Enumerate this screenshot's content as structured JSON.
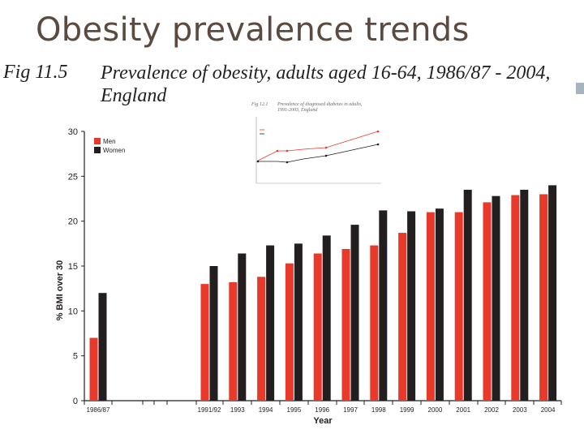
{
  "slide": {
    "title": "Obesity prevalence trends"
  },
  "figure": {
    "label": "Fig 11.5",
    "caption_line1": "Prevalence of obesity, adults aged 16-64, 1986/87 - 2004,",
    "caption_line2": "England"
  },
  "inset": {
    "label": "Fig 12.1",
    "title_line1": "Prevalence of diagnosed diabetes in adults,",
    "title_line2": "1991-2003, England"
  },
  "colors": {
    "men": "#e8392b",
    "women": "#231f20",
    "title": "#5b4a3f",
    "inset_red": "#e8392b",
    "inset_dark": "#231f20"
  },
  "chart_data": {
    "type": "bar",
    "title": "Prevalence of obesity, adults aged 16-64, 1986/87 - 2004, England",
    "xlabel": "Year",
    "ylabel": "% BMI over 30",
    "ylim": [
      0,
      30
    ],
    "yticks": [
      0,
      5,
      10,
      15,
      20,
      25,
      30
    ],
    "legend": "top-left",
    "categories": [
      "1986/87",
      "1991/92",
      "1993",
      "1994",
      "1995",
      "1996",
      "1997",
      "1998",
      "1999",
      "2000",
      "2001",
      "2002",
      "2003",
      "2004"
    ],
    "series": [
      {
        "name": "Men",
        "values": [
          7.0,
          13.0,
          13.2,
          13.8,
          15.3,
          16.4,
          16.9,
          17.3,
          18.7,
          21.0,
          21.0,
          22.1,
          22.9,
          23.0
        ]
      },
      {
        "name": "Women",
        "values": [
          12.0,
          15.0,
          16.4,
          17.3,
          17.5,
          18.4,
          19.6,
          21.2,
          21.1,
          21.4,
          23.5,
          22.8,
          23.5,
          24.0
        ]
      }
    ]
  }
}
